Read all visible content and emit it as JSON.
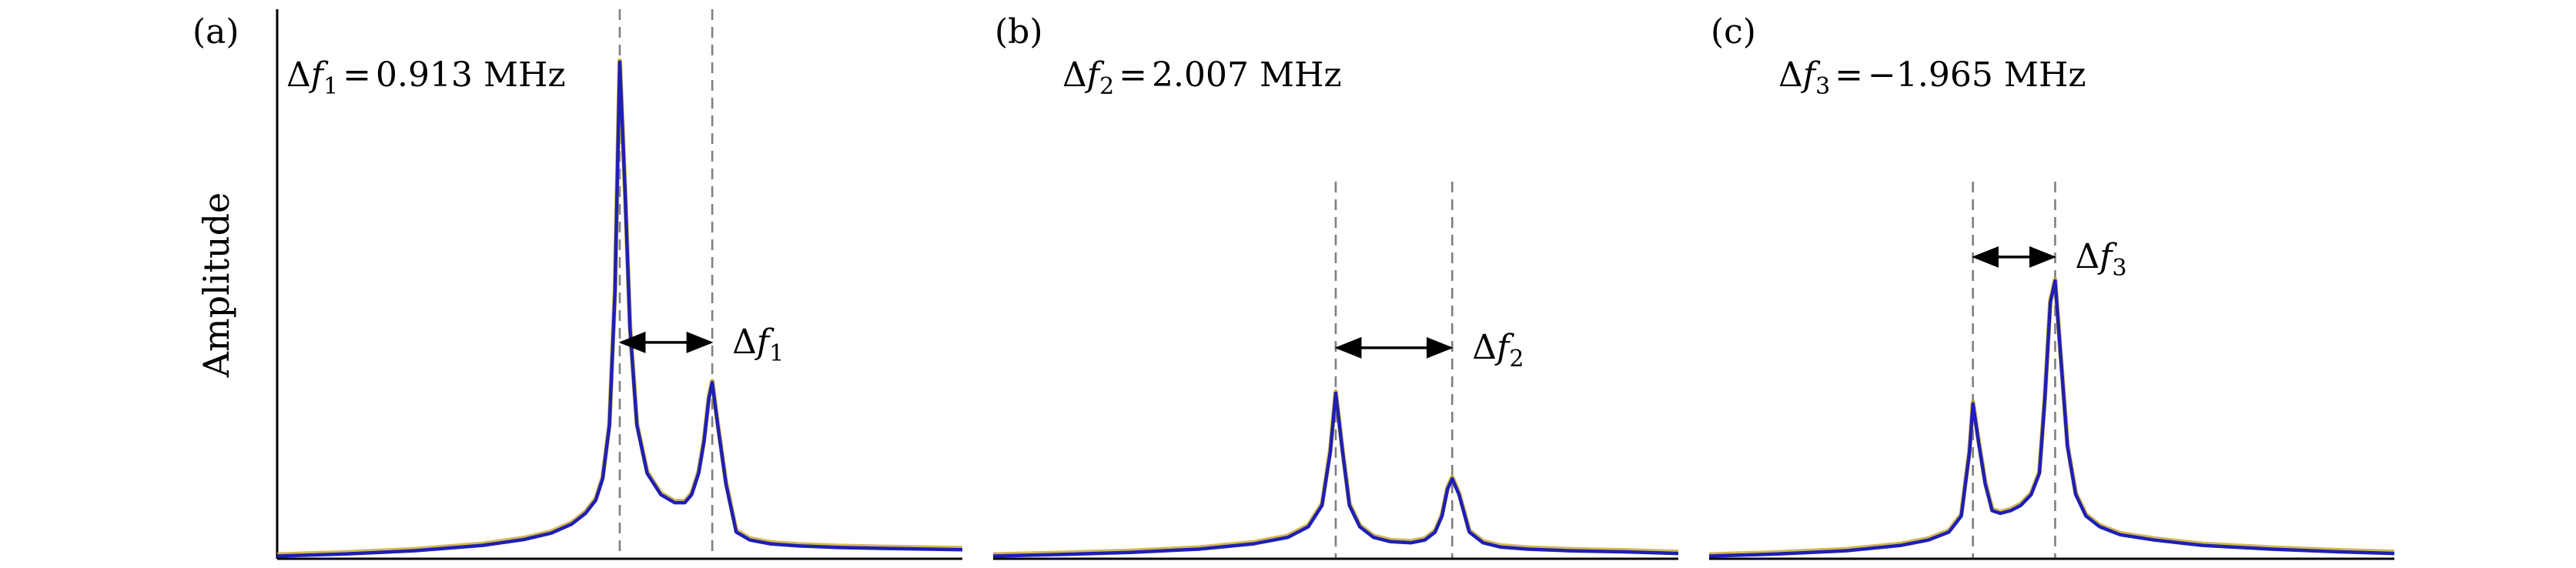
{
  "figure": {
    "ylabel": "Amplitude",
    "line_color": "#1f1fb4",
    "shadow_color": "#c8a82a",
    "vline_color": "#7f7f7f"
  },
  "chart_data": [
    {
      "type": "line",
      "panel_label": "(a)",
      "annotation": {
        "symbol": "Δ",
        "var": "f",
        "sub": "1",
        "eq": "=",
        "value": "0.913",
        "unit": "MHz"
      },
      "arrow_label": {
        "symbol": "Δ",
        "var": "f",
        "sub": "1"
      },
      "ylabel": "Amplitude",
      "xlim": [
        0,
        100
      ],
      "ylim": [
        0,
        1
      ],
      "peaks": [
        {
          "x": 50,
          "y": 0.93
        },
        {
          "x": 63.5,
          "y": 0.33
        }
      ],
      "vlines": [
        50,
        63.5
      ],
      "arrow_y": 0.405,
      "series": [
        {
          "x": [
            0,
            10,
            20,
            30,
            36,
            40,
            43,
            45,
            46.5,
            47.5,
            48.5,
            49.3,
            50,
            50.8,
            51.5,
            52.5,
            54,
            56,
            58,
            59.5,
            60.5,
            61.5,
            62.3,
            63,
            63.5,
            64.3,
            65.5,
            67,
            69,
            72,
            76,
            82,
            90,
            100
          ],
          "values": [
            0.005,
            0.009,
            0.015,
            0.025,
            0.036,
            0.048,
            0.065,
            0.085,
            0.11,
            0.15,
            0.25,
            0.5,
            0.93,
            0.68,
            0.43,
            0.25,
            0.16,
            0.12,
            0.105,
            0.105,
            0.12,
            0.16,
            0.22,
            0.3,
            0.33,
            0.25,
            0.14,
            0.05,
            0.035,
            0.028,
            0.024,
            0.021,
            0.019,
            0.017
          ]
        }
      ]
    },
    {
      "type": "line",
      "panel_label": "(b)",
      "annotation": {
        "symbol": "Δ",
        "var": "f",
        "sub": "2",
        "eq": "=",
        "value": "2.007",
        "unit": "MHz"
      },
      "arrow_label": {
        "symbol": "Δ",
        "var": "f",
        "sub": "2"
      },
      "ylabel": "",
      "xlim": [
        0,
        100
      ],
      "ylim": [
        0,
        1
      ],
      "peaks": [
        {
          "x": 50,
          "y": 0.31
        },
        {
          "x": 67,
          "y": 0.15
        }
      ],
      "vlines": [
        50,
        67
      ],
      "arrow_y": 0.395,
      "series": [
        {
          "x": [
            0,
            10,
            20,
            30,
            38,
            43,
            46,
            48,
            49.2,
            50,
            51,
            52,
            53.5,
            55.5,
            58,
            61,
            63,
            64.5,
            65.5,
            66.3,
            67,
            68,
            69.5,
            71.5,
            74,
            78,
            84,
            92,
            100
          ],
          "values": [
            0.005,
            0.008,
            0.012,
            0.018,
            0.028,
            0.04,
            0.06,
            0.1,
            0.2,
            0.31,
            0.2,
            0.1,
            0.06,
            0.04,
            0.032,
            0.03,
            0.035,
            0.05,
            0.08,
            0.13,
            0.15,
            0.12,
            0.05,
            0.03,
            0.022,
            0.018,
            0.015,
            0.013,
            0.01
          ]
        }
      ]
    },
    {
      "type": "line",
      "panel_label": "(c)",
      "annotation": {
        "symbol": "Δ",
        "var": "f",
        "sub": "3",
        "eq": "=",
        "value": "−1.965",
        "unit": "MHz"
      },
      "arrow_label": {
        "symbol": "Δ",
        "var": "f",
        "sub": "3"
      },
      "ylabel": "",
      "xlim": [
        0,
        100
      ],
      "ylim": [
        0,
        1
      ],
      "peaks": [
        {
          "x": 38.5,
          "y": 0.29
        },
        {
          "x": 50.5,
          "y": 0.52
        }
      ],
      "vlines": [
        38.5,
        50.5
      ],
      "arrow_y": 0.565,
      "series": [
        {
          "x": [
            0,
            10,
            20,
            28,
            32,
            35,
            36.8,
            38,
            38.5,
            39.3,
            40.3,
            41.3,
            42.5,
            44,
            45.5,
            47,
            48.2,
            49,
            49.8,
            50.5,
            51.3,
            52.3,
            53.5,
            55,
            57,
            60,
            65,
            72,
            82,
            92,
            100
          ],
          "values": [
            0.005,
            0.009,
            0.015,
            0.025,
            0.035,
            0.05,
            0.08,
            0.2,
            0.29,
            0.22,
            0.14,
            0.09,
            0.085,
            0.09,
            0.1,
            0.12,
            0.16,
            0.3,
            0.48,
            0.52,
            0.38,
            0.21,
            0.12,
            0.08,
            0.06,
            0.045,
            0.035,
            0.025,
            0.018,
            0.013,
            0.01
          ]
        }
      ]
    }
  ]
}
